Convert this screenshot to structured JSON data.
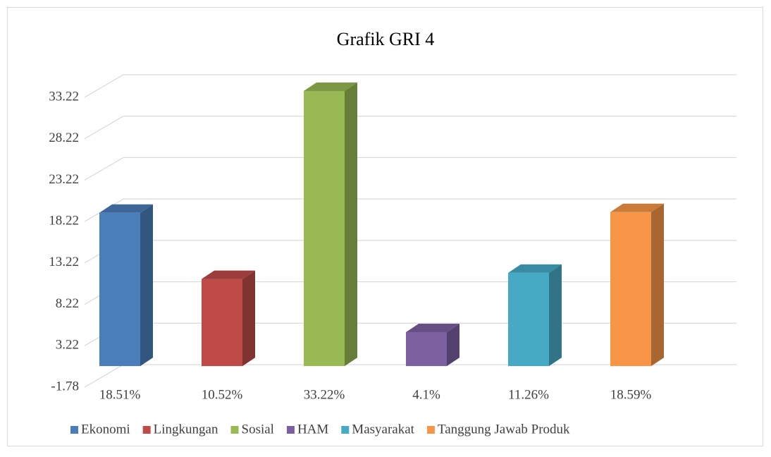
{
  "chart_data": {
    "type": "bar3d",
    "title": "Grafik GRI 4",
    "series": [
      {
        "name": "Ekonomi",
        "color": "#4a7ebb",
        "values": [
          18.51
        ],
        "value_labels": [
          "18.51%"
        ]
      },
      {
        "name": "Lingkungan",
        "color": "#be4b48",
        "values": [
          10.52
        ],
        "value_labels": [
          "10.52%"
        ]
      },
      {
        "name": "Sosial",
        "color": "#98b954",
        "values": [
          33.22
        ],
        "value_labels": [
          "33.22%"
        ]
      },
      {
        "name": "HAM",
        "color": "#7d60a0",
        "values": [
          4.1
        ],
        "value_labels": [
          "4.1%"
        ]
      },
      {
        "name": "Masyarakat",
        "color": "#46aac5",
        "values": [
          11.26
        ],
        "value_labels": [
          "11.26%"
        ]
      },
      {
        "name": "Tanggung Jawab Produk",
        "color": "#f79646",
        "values": [
          18.59
        ],
        "value_labels": [
          "18.59%"
        ]
      }
    ],
    "ylim": [
      -1.78,
      33.22
    ],
    "yticks": [
      -1.78,
      3.22,
      8.22,
      13.22,
      18.22,
      23.22,
      28.22,
      33.22
    ],
    "grid": true,
    "legend": "bottom"
  }
}
